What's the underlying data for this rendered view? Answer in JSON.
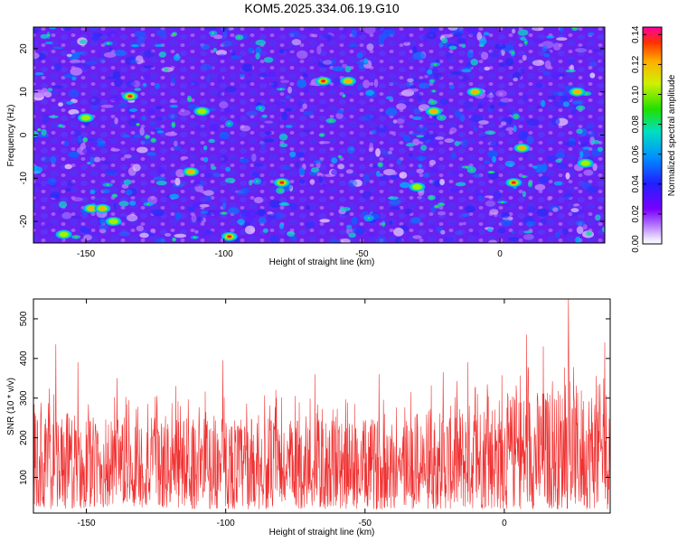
{
  "title": "KOM5.2025.334.06.19.G10",
  "chart_data": [
    {
      "type": "heatmap",
      "xlabel": "Height of straight line (km)",
      "ylabel": "Frequency (Hz)",
      "xlim": [
        -169,
        38
      ],
      "ylim": [
        -25,
        25
      ],
      "xticks": [
        {
          "value": -150,
          "label": "-150"
        },
        {
          "value": -100,
          "label": "-100"
        },
        {
          "value": -50,
          "label": "-50"
        },
        {
          "value": 0,
          "label": "0"
        }
      ],
      "yticks": [
        {
          "value": -20,
          "label": "-20"
        },
        {
          "value": -10,
          "label": "-10"
        },
        {
          "value": 0,
          "label": "0"
        },
        {
          "value": 10,
          "label": "10"
        },
        {
          "value": 20,
          "label": "20"
        }
      ],
      "colorbar": {
        "label": "Normalized spectral amplitude",
        "range": [
          0,
          0.145
        ],
        "ticks": [
          {
            "value": 0,
            "label": "0.00"
          },
          {
            "value": 0.02,
            "label": "0.02"
          },
          {
            "value": 0.04,
            "label": "0.04"
          },
          {
            "value": 0.06,
            "label": "0.06"
          },
          {
            "value": 0.08,
            "label": "0.08"
          },
          {
            "value": 0.1,
            "label": "0.10"
          },
          {
            "value": 0.12,
            "label": "0.12"
          },
          {
            "value": 0.14,
            "label": "0.14"
          }
        ]
      },
      "peaks": [
        {
          "x": -134,
          "y": 9,
          "value": 0.13
        },
        {
          "x": -64,
          "y": 12.5,
          "value": 0.13
        },
        {
          "x": -79,
          "y": -11,
          "value": 0.12
        },
        {
          "x": 5,
          "y": -11,
          "value": 0.13
        },
        {
          "x": -98,
          "y": -23.5,
          "value": 0.11
        },
        {
          "x": -148,
          "y": -17,
          "value": 0.1
        },
        {
          "x": -144,
          "y": -17,
          "value": 0.09
        },
        {
          "x": -112,
          "y": -8.5,
          "value": 0.09
        },
        {
          "x": -158,
          "y": -23,
          "value": 0.07
        },
        {
          "x": -108,
          "y": 5.5,
          "value": 0.08
        },
        {
          "x": -24,
          "y": 5.5,
          "value": 0.1
        },
        {
          "x": -9,
          "y": 10,
          "value": 0.09
        },
        {
          "x": 28,
          "y": 10,
          "value": 0.09
        },
        {
          "x": -150,
          "y": 4,
          "value": 0.08
        },
        {
          "x": -55,
          "y": 12.5,
          "value": 0.09
        },
        {
          "x": 8,
          "y": -3,
          "value": 0.09
        },
        {
          "x": -140,
          "y": -20,
          "value": 0.08
        },
        {
          "x": 31,
          "y": -6.5,
          "value": 0.07
        },
        {
          "x": -30,
          "y": -12,
          "value": 0.07
        }
      ]
    },
    {
      "type": "line",
      "xlabel": "Height of straight line (km)",
      "ylabel": "SNR (10 * v/v)",
      "xlim": [
        -169,
        38
      ],
      "ylim": [
        10,
        550
      ],
      "color": "#f03030",
      "xticks": [
        {
          "value": -150,
          "label": "-150"
        },
        {
          "value": -100,
          "label": "-100"
        },
        {
          "value": -50,
          "label": "-50"
        },
        {
          "value": 0,
          "label": "0"
        }
      ],
      "yticks": [
        {
          "value": 100,
          "label": "100"
        },
        {
          "value": 200,
          "label": "200"
        },
        {
          "value": 300,
          "label": "300"
        },
        {
          "value": 400,
          "label": "400"
        },
        {
          "value": 500,
          "label": "500"
        }
      ],
      "envelope": [
        {
          "x": -169,
          "y": 270
        },
        {
          "x": -140,
          "y": 250
        },
        {
          "x": -110,
          "y": 260
        },
        {
          "x": -80,
          "y": 250
        },
        {
          "x": -50,
          "y": 245
        },
        {
          "x": -20,
          "y": 280
        },
        {
          "x": 5,
          "y": 320
        },
        {
          "x": 38,
          "y": 340
        }
      ],
      "spikes": [
        {
          "x": -161,
          "y": 435
        },
        {
          "x": -153,
          "y": 390
        },
        {
          "x": -101,
          "y": 395
        },
        {
          "x": 23,
          "y": 550
        },
        {
          "x": 8,
          "y": 460
        },
        {
          "x": 14,
          "y": 430
        },
        {
          "x": 36,
          "y": 440
        },
        {
          "x": -139,
          "y": 350
        },
        {
          "x": -68,
          "y": 360
        },
        {
          "x": -45,
          "y": 360
        },
        {
          "x": -22,
          "y": 365
        },
        {
          "x": -13,
          "y": 390
        },
        {
          "x": -118,
          "y": 330
        },
        {
          "x": -82,
          "y": 320
        }
      ]
    }
  ]
}
